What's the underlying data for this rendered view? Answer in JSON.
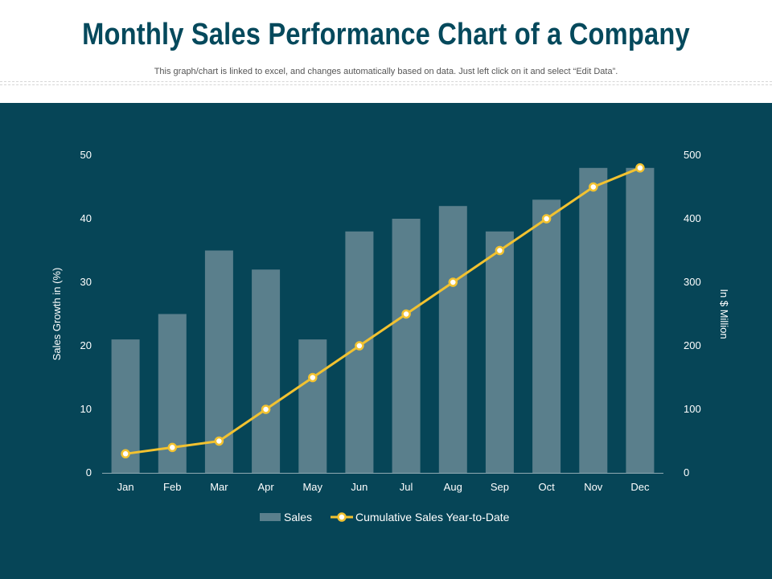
{
  "page": {
    "title": "Monthly Sales Performance Chart of a Company",
    "subtitle": "This graph/chart is linked to excel,  and changes automatically based on data. Just left click on it and select “Edit Data”."
  },
  "colors": {
    "title": "#05495c",
    "panel_bg": "#064557",
    "bar": "#5a7f8c",
    "line": "#f2c230",
    "marker_fill": "#ffffff",
    "text": "#ffffff"
  },
  "chart_data": {
    "type": "bar",
    "categories": [
      "Jan",
      "Feb",
      "Mar",
      "Apr",
      "May",
      "Jun",
      "Jul",
      "Aug",
      "Sep",
      "Oct",
      "Nov",
      "Dec"
    ],
    "series": [
      {
        "name": "Sales",
        "type": "bar",
        "axis": "left",
        "values": [
          21,
          25,
          35,
          32,
          21,
          38,
          40,
          42,
          38,
          43,
          48,
          48
        ]
      },
      {
        "name": "Cumulative Sales Year-to-Date",
        "type": "line",
        "axis": "right",
        "values": [
          30,
          40,
          50,
          100,
          150,
          200,
          250,
          300,
          350,
          400,
          450,
          480
        ]
      }
    ],
    "ylabel": "Sales Growth in (%)",
    "ylabel_right": "In $ Million",
    "ylim": [
      0,
      50
    ],
    "ylim_right": [
      0,
      500
    ],
    "yticks": [
      0,
      10,
      20,
      30,
      40,
      50
    ],
    "yticks_right": [
      0,
      100,
      200,
      300,
      400,
      500
    ],
    "grid": false,
    "legend": "bottom-center"
  }
}
